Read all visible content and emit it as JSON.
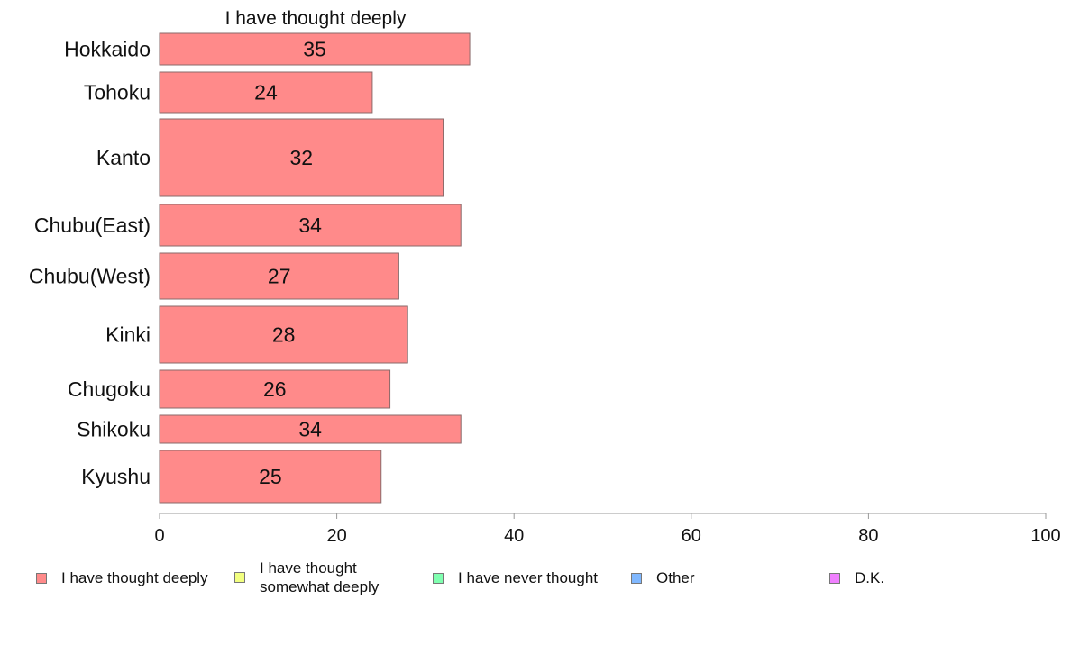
{
  "chart_data": {
    "type": "bar",
    "orientation": "horizontal",
    "title": "I have thought deeply",
    "categories": [
      "Hokkaido",
      "Tohoku",
      "Kanto",
      "Chubu(East)",
      "Chubu(West)",
      "Kinki",
      "Chugoku",
      "Shikoku",
      "Kyushu"
    ],
    "values": [
      35,
      24,
      32,
      34,
      27,
      28,
      26,
      34,
      25
    ],
    "data_labels": [
      "35",
      "24",
      "32",
      "34",
      "27",
      "28",
      "26",
      "34",
      "25"
    ],
    "xlim": [
      0,
      100
    ],
    "x_ticks": [
      "0",
      "20",
      "40",
      "60",
      "80",
      "100"
    ],
    "bar_color": "#ff8a8a",
    "bar_border_color": "#8a6a6a",
    "grid": false,
    "legend_position": "bottom",
    "legend": [
      {
        "label": "I have thought deeply",
        "color": "#ff8a8a"
      },
      {
        "label": "I have thought\nsomewhat deeply",
        "color": "#f2ff80"
      },
      {
        "label": "I have never thought",
        "color": "#80ffb0"
      },
      {
        "label": "Other",
        "color": "#80b8ff"
      },
      {
        "label": "D.K.",
        "color": "#f080ff"
      }
    ]
  }
}
